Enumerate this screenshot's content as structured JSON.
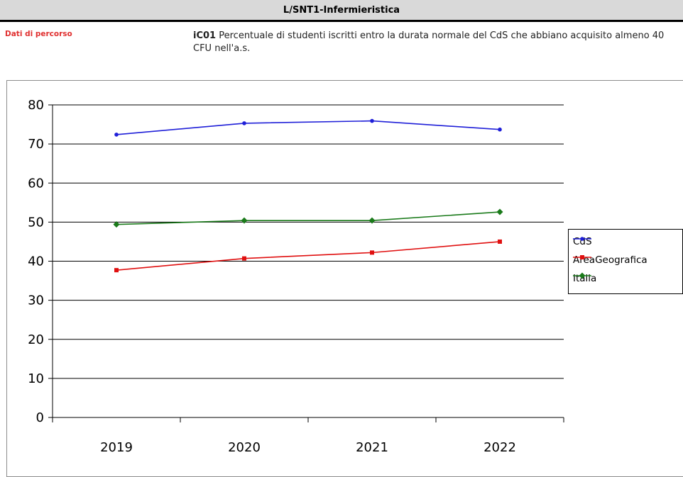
{
  "header": {
    "title": "L/SNT1-Infermieristica"
  },
  "section": {
    "label": "Dati di percorso"
  },
  "indicator": {
    "code": "iC01",
    "description": "Percentuale di studenti iscritti entro la durata normale del CdS che abbiano acquisito almeno 40 CFU nell'a.s."
  },
  "chart_data": {
    "type": "line",
    "title": "",
    "xlabel": "",
    "ylabel": "",
    "categories": [
      "2019",
      "2020",
      "2021",
      "2022"
    ],
    "ylim": [
      0,
      80
    ],
    "yticks": [
      0,
      10,
      20,
      30,
      40,
      50,
      60,
      70,
      80
    ],
    "grid": true,
    "legend_position": "right",
    "series": [
      {
        "name": "CdS",
        "values": [
          72.4,
          75.3,
          75.9,
          73.7
        ],
        "color": "#1f1fd8",
        "marker": "circle"
      },
      {
        "name": "AreaGeografica",
        "values": [
          37.7,
          40.7,
          42.2,
          45.0
        ],
        "color": "#e01010",
        "marker": "square"
      },
      {
        "name": "Italia",
        "values": [
          49.4,
          50.4,
          50.4,
          52.6
        ],
        "color": "#1a7a1a",
        "marker": "diamond"
      }
    ]
  }
}
